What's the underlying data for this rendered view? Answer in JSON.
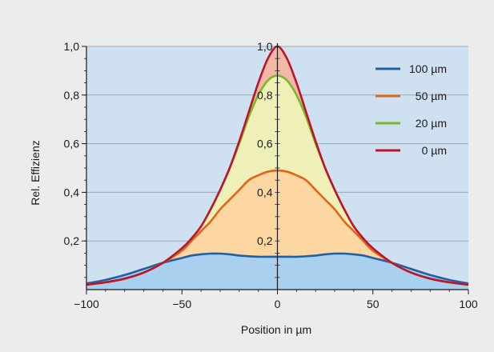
{
  "chart_data": {
    "type": "area",
    "title": "",
    "xlabel": "Position in µm",
    "ylabel": "Rel. Effizienz",
    "xlim": [
      -100,
      100
    ],
    "ylim": [
      0,
      1.0
    ],
    "grid": true,
    "legend_position": "top-right",
    "x_ticks": [
      {
        "value": -100,
        "label": "−100"
      },
      {
        "value": -50,
        "label": "−50"
      },
      {
        "value": 0,
        "label": "0"
      },
      {
        "value": 50,
        "label": "50"
      },
      {
        "value": 100,
        "label": "100"
      }
    ],
    "y_ticks": [
      {
        "value": 0.2,
        "label": "0,2"
      },
      {
        "value": 0.4,
        "label": "0,4"
      },
      {
        "value": 0.6,
        "label": "0,6"
      },
      {
        "value": 0.8,
        "label": "0,8"
      },
      {
        "value": 1.0,
        "label": "1,0"
      }
    ],
    "inner_y_ticks": [
      {
        "value": 0.2,
        "label": "0,2"
      },
      {
        "value": 0.4,
        "label": "0,4"
      },
      {
        "value": 0.6,
        "label": "0,6"
      },
      {
        "value": 0.8,
        "label": "0,8"
      },
      {
        "value": 1.0,
        "label": "1,0"
      }
    ],
    "colors": {
      "plot_background": "#cfe0f0",
      "page_background": "#ececec",
      "grid": "#9aa7b4"
    },
    "series": [
      {
        "name": "0 µm",
        "color": "#c0122a",
        "fill": "#f3b8a6",
        "x": [
          -100,
          -90,
          -80,
          -70,
          -60,
          -50,
          -45,
          -40,
          -35,
          -30,
          -25,
          -20,
          -15,
          -10,
          -5,
          0,
          5,
          10,
          15,
          20,
          25,
          30,
          35,
          40,
          45,
          50,
          60,
          70,
          80,
          90,
          100
        ],
        "y": [
          0.02,
          0.03,
          0.045,
          0.07,
          0.11,
          0.17,
          0.21,
          0.26,
          0.33,
          0.41,
          0.5,
          0.61,
          0.73,
          0.85,
          0.95,
          1.0,
          0.95,
          0.85,
          0.73,
          0.61,
          0.5,
          0.41,
          0.33,
          0.26,
          0.21,
          0.17,
          0.11,
          0.07,
          0.045,
          0.03,
          0.02
        ]
      },
      {
        "name": "20 µm",
        "color": "#7ab82a",
        "fill": "#eef0b8",
        "x": [
          -100,
          -90,
          -80,
          -70,
          -60,
          -50,
          -45,
          -40,
          -35,
          -30,
          -25,
          -20,
          -15,
          -10,
          -5,
          0,
          5,
          10,
          15,
          20,
          25,
          30,
          35,
          40,
          45,
          50,
          60,
          70,
          80,
          90,
          100
        ],
        "y": [
          0.02,
          0.03,
          0.045,
          0.07,
          0.11,
          0.17,
          0.21,
          0.26,
          0.33,
          0.41,
          0.5,
          0.6,
          0.71,
          0.8,
          0.86,
          0.88,
          0.86,
          0.8,
          0.71,
          0.6,
          0.5,
          0.41,
          0.33,
          0.26,
          0.21,
          0.17,
          0.11,
          0.07,
          0.045,
          0.03,
          0.02
        ]
      },
      {
        "name": "50 µm",
        "color": "#e0641c",
        "fill": "#fcd7a2",
        "x": [
          -100,
          -90,
          -80,
          -70,
          -60,
          -50,
          -45,
          -40,
          -35,
          -30,
          -25,
          -20,
          -15,
          -10,
          -5,
          0,
          5,
          10,
          15,
          20,
          25,
          30,
          35,
          40,
          45,
          50,
          60,
          70,
          80,
          90,
          100
        ],
        "y": [
          0.02,
          0.03,
          0.045,
          0.07,
          0.11,
          0.16,
          0.2,
          0.24,
          0.28,
          0.33,
          0.37,
          0.41,
          0.45,
          0.47,
          0.485,
          0.49,
          0.485,
          0.47,
          0.45,
          0.41,
          0.37,
          0.33,
          0.28,
          0.24,
          0.2,
          0.16,
          0.11,
          0.07,
          0.045,
          0.03,
          0.02
        ]
      },
      {
        "name": "100 µm",
        "color": "#1f5fa8",
        "fill": "#a9d0ee",
        "x": [
          -100,
          -90,
          -80,
          -70,
          -60,
          -50,
          -45,
          -40,
          -35,
          -30,
          -25,
          -20,
          -15,
          -10,
          -5,
          0,
          5,
          10,
          15,
          20,
          25,
          30,
          35,
          40,
          45,
          50,
          60,
          70,
          80,
          90,
          100
        ],
        "y": [
          0.025,
          0.04,
          0.06,
          0.085,
          0.11,
          0.13,
          0.14,
          0.145,
          0.148,
          0.148,
          0.145,
          0.14,
          0.137,
          0.135,
          0.135,
          0.135,
          0.135,
          0.135,
          0.137,
          0.14,
          0.145,
          0.148,
          0.148,
          0.145,
          0.14,
          0.13,
          0.11,
          0.085,
          0.06,
          0.04,
          0.025
        ]
      }
    ],
    "legend": [
      {
        "name": "100 µm",
        "color": "#1f5fa8"
      },
      {
        "name": "50 µm",
        "color": "#e0641c"
      },
      {
        "name": "20 µm",
        "color": "#7ab82a"
      },
      {
        "name": "0 µm",
        "color": "#c0122a"
      }
    ]
  }
}
